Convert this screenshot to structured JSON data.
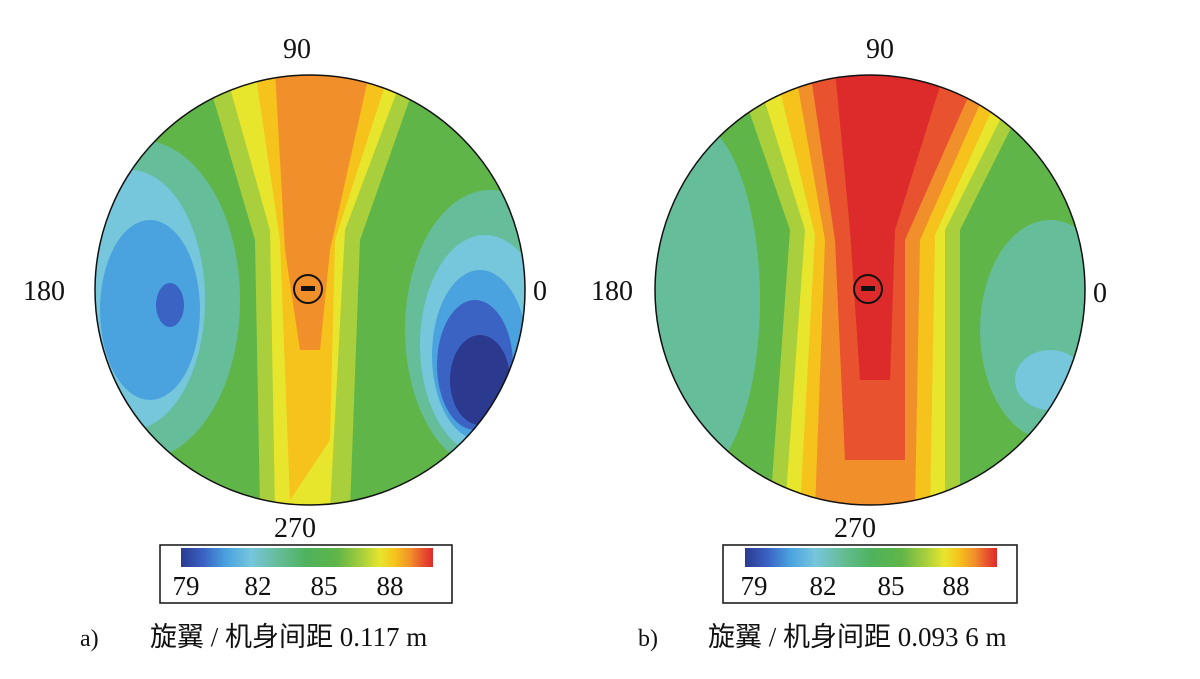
{
  "figure_type": "contour-polar",
  "colors": {
    "scale": [
      "#2b3a8f",
      "#3a63c4",
      "#4aa3df",
      "#76c6dc",
      "#66bd9a",
      "#4fb25c",
      "#5fb548",
      "#a9cf3c",
      "#e8e52d",
      "#f6c21c",
      "#f1902a",
      "#e8522e",
      "#dd2a2a"
    ],
    "background": "#ffffff",
    "outline": "#111111"
  },
  "chart_data": [
    {
      "type": "heatmap",
      "panel": "a)",
      "caption": "旋翼 / 机身间距 0.117 m",
      "angle_labels": {
        "top": "90",
        "left": "180",
        "right": "0",
        "bottom": "270"
      },
      "colorbar": {
        "ticks": [
          "79",
          "82",
          "85",
          "88"
        ],
        "range": [
          78,
          90
        ]
      },
      "marker": "rotor-hub"
    },
    {
      "type": "heatmap",
      "panel": "b)",
      "caption": "旋翼 / 机身间距 0.093 6 m",
      "angle_labels": {
        "top": "90",
        "left": "180",
        "right": "0",
        "bottom": "270"
      },
      "colorbar": {
        "ticks": [
          "79",
          "82",
          "85",
          "88"
        ],
        "range": [
          78,
          90
        ]
      },
      "marker": "rotor-hub"
    }
  ]
}
